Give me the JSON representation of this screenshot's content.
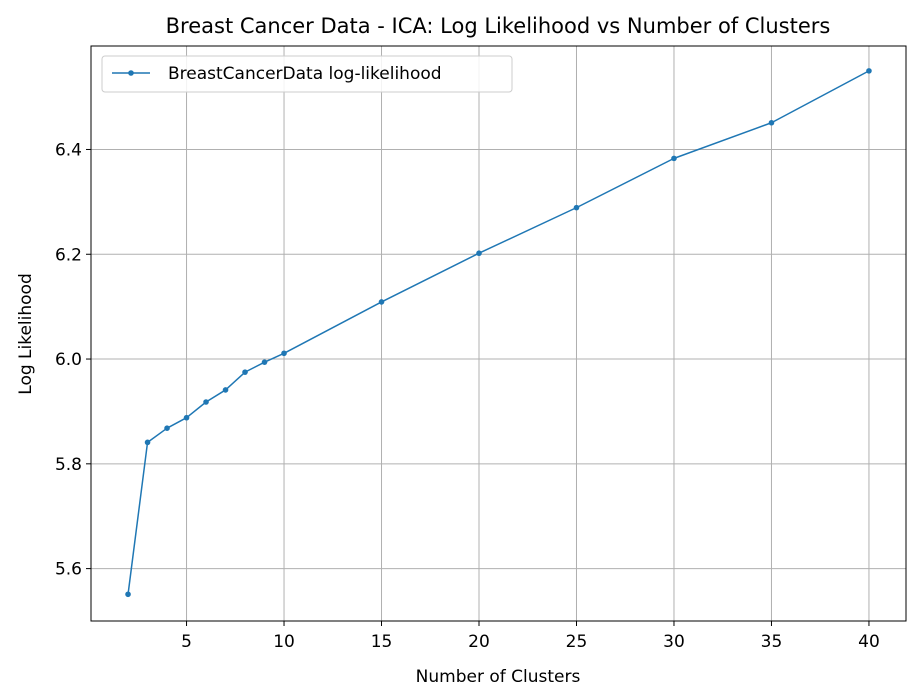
{
  "chart_data": {
    "type": "line",
    "title": "Breast Cancer Data - ICA: Log Likelihood vs Number of Clusters",
    "xlabel": "Number of Clusters",
    "ylabel": "Log Likelihood",
    "xlim": [
      0.1,
      41.9
    ],
    "ylim": [
      5.5,
      6.5975
    ],
    "xticks": [
      5,
      10,
      15,
      20,
      25,
      30,
      35,
      40
    ],
    "yticks": [
      5.6,
      5.8,
      6.0,
      6.2,
      6.4
    ],
    "grid": true,
    "legend_position": "top-left",
    "series": [
      {
        "name": "BreastCancerData log-likelihood",
        "color": "#1f77b4",
        "marker": "circle",
        "x": [
          2,
          3,
          4,
          5,
          6,
          7,
          8,
          9,
          10,
          15,
          20,
          25,
          30,
          35,
          40
        ],
        "y": [
          5.551,
          5.841,
          5.868,
          5.888,
          5.918,
          5.941,
          5.975,
          5.994,
          6.011,
          6.109,
          6.202,
          6.289,
          6.383,
          6.451,
          6.55
        ]
      }
    ]
  }
}
